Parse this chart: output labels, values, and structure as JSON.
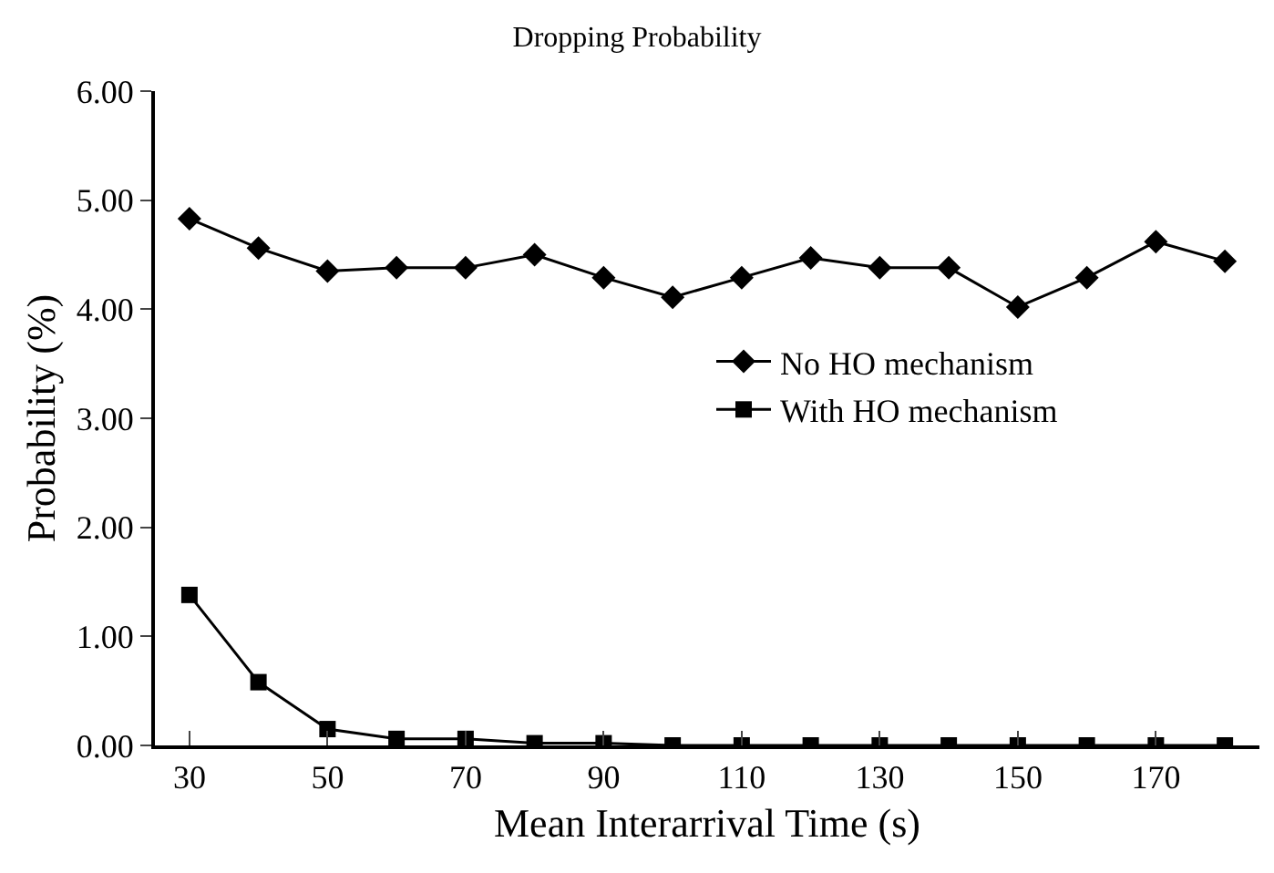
{
  "chart_data": {
    "type": "line",
    "title": "Dropping Probability",
    "xlabel": "Mean Interarrival Time (s)",
    "ylabel": "Probability (%)",
    "x": [
      30,
      40,
      50,
      60,
      70,
      80,
      90,
      100,
      110,
      120,
      130,
      140,
      150,
      160,
      170,
      180
    ],
    "series": [
      {
        "name": "No HO mechanism",
        "color": "#000000",
        "marker": "diamond",
        "values": [
          4.83,
          4.56,
          4.35,
          4.38,
          4.38,
          4.5,
          4.29,
          4.11,
          4.29,
          4.47,
          4.38,
          4.38,
          4.02,
          4.29,
          4.62,
          4.44
        ]
      },
      {
        "name": "With HO mechanism",
        "color": "#000000",
        "marker": "square",
        "values": [
          1.38,
          0.58,
          0.15,
          0.06,
          0.06,
          0.02,
          0.02,
          0,
          0,
          0,
          0,
          0,
          0,
          0,
          0,
          0
        ]
      }
    ],
    "xlim": [
      25,
      185
    ],
    "xticks": [
      30,
      50,
      70,
      90,
      110,
      130,
      150,
      170
    ],
    "ylim": [
      0,
      6
    ],
    "yticks": [
      {
        "value": 0,
        "label": "0.00"
      },
      {
        "value": 1,
        "label": "1.00"
      },
      {
        "value": 2,
        "label": "2.00"
      },
      {
        "value": 3,
        "label": "3.00"
      },
      {
        "value": 4,
        "label": "4.00"
      },
      {
        "value": 5,
        "label": "5.00"
      },
      {
        "value": 6,
        "label": "6.00"
      }
    ],
    "grid": false,
    "legend": "right",
    "line_style": "solid"
  }
}
